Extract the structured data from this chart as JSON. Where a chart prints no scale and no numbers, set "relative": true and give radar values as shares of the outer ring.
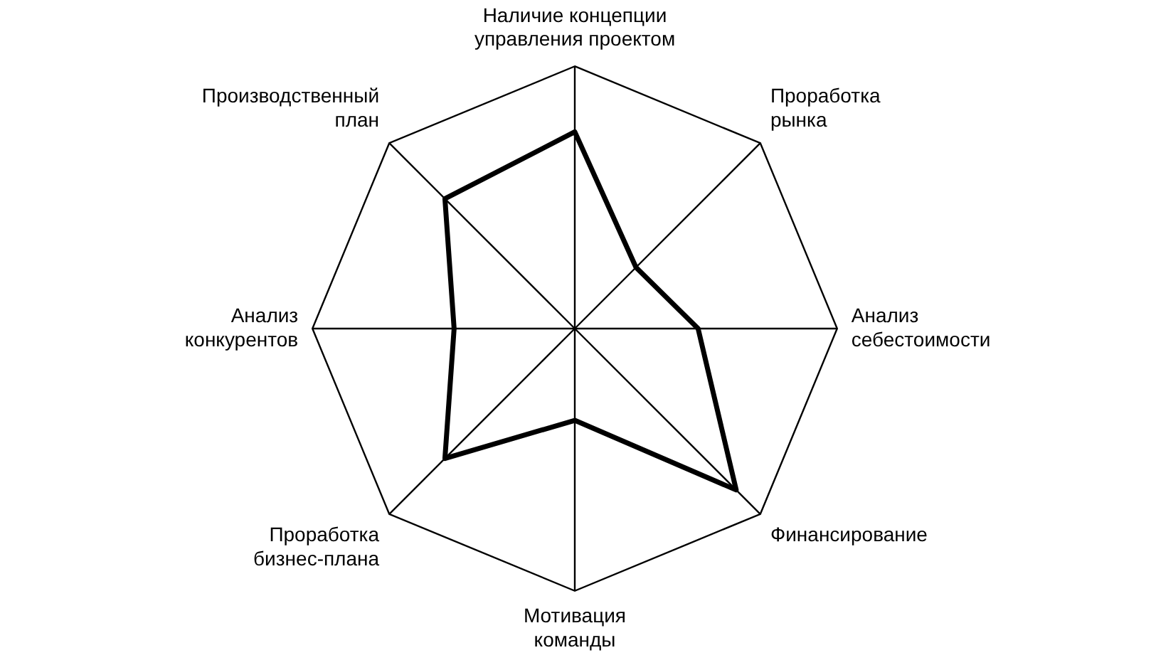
{
  "chart_data": {
    "type": "radar",
    "relative": true,
    "grid": true,
    "legend": false,
    "marker": "none",
    "line_style": "solid",
    "categories": [
      "Наличие концепции управления проектом",
      "Проработка рынка",
      "Анализ себестоимости",
      "Финансирование",
      "Мотивация команды",
      "Проработка бизнес-плана",
      "Анализ конкурентов",
      "Производственный план"
    ],
    "series": [
      {
        "color": "#000000",
        "values": [
          0.75,
          0.33,
          0.47,
          0.87,
          0.35,
          0.7,
          0.46,
          0.7
        ]
      }
    ]
  }
}
